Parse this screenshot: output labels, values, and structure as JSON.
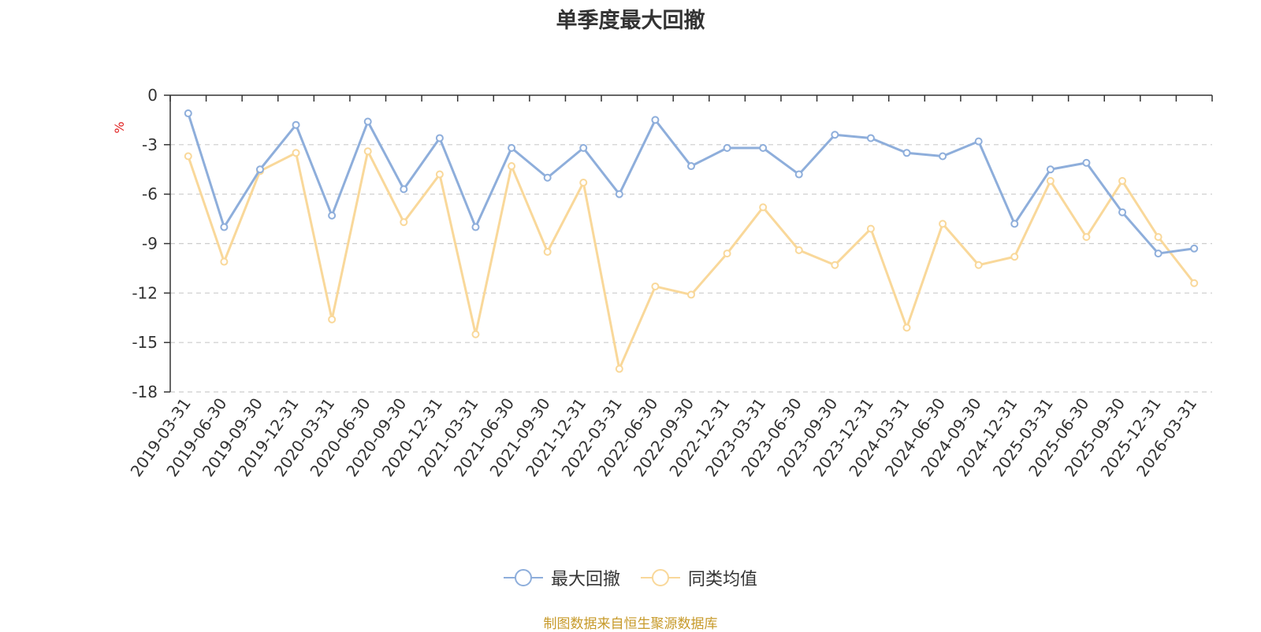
{
  "chart_data": {
    "type": "line",
    "title": "单季度最大回撤",
    "ylabel": "%",
    "ylim": [
      -18,
      0
    ],
    "yticks": [
      "0",
      "-3",
      "-6",
      "-9",
      "-12",
      "-15",
      "-18"
    ],
    "ytick_values": [
      0,
      -3,
      -6,
      -9,
      -12,
      -15,
      -18
    ],
    "grid": true,
    "legend_position": "bottom",
    "categories": [
      "2019-03-31",
      "2019-06-30",
      "2019-09-30",
      "2019-12-31",
      "2020-03-31",
      "2020-06-30",
      "2020-09-30",
      "2020-12-31",
      "2021-03-31",
      "2021-06-30",
      "2021-09-30",
      "2021-12-31",
      "2022-03-31",
      "2022-06-30",
      "2022-09-30",
      "2022-12-31",
      "2023-03-31",
      "2023-06-30",
      "2023-09-30",
      "2023-12-31",
      "2024-03-31",
      "2024-06-30",
      "2024-09-30",
      "2024-12-31",
      "2025-03-31",
      "2025-06-30",
      "2025-09-30",
      "2025-12-31",
      "2026-03-31"
    ],
    "series": [
      {
        "name": "最大回撤",
        "color": "#8eaedb",
        "values": [
          -1.1,
          -8.0,
          -4.5,
          -1.8,
          -7.3,
          -1.6,
          -5.7,
          -2.6,
          -8.0,
          -3.2,
          -5.0,
          -3.2,
          -6.0,
          -1.5,
          -4.3,
          -3.2,
          -3.2,
          -4.8,
          -2.4,
          -2.6,
          -3.5,
          -3.7,
          -2.8,
          -7.8,
          -4.5,
          -4.1,
          -7.1,
          -9.6,
          -9.3
        ]
      },
      {
        "name": "同类均值",
        "color": "#f9d89a",
        "values": [
          -3.7,
          -10.1,
          -4.6,
          -3.5,
          -13.6,
          -3.4,
          -7.7,
          -4.8,
          -14.5,
          -4.3,
          -9.5,
          -5.3,
          -16.6,
          -11.6,
          -12.1,
          -9.6,
          -6.8,
          -9.4,
          -10.3,
          -8.1,
          -14.1,
          -7.8,
          -10.3,
          -9.8,
          -5.2,
          -8.6,
          -5.2,
          -8.6,
          -11.4
        ]
      }
    ]
  },
  "legend": {
    "item1_label": "最大回撤",
    "item2_label": "同类均值"
  },
  "footer": {
    "source": "制图数据来自恒生聚源数据库"
  }
}
